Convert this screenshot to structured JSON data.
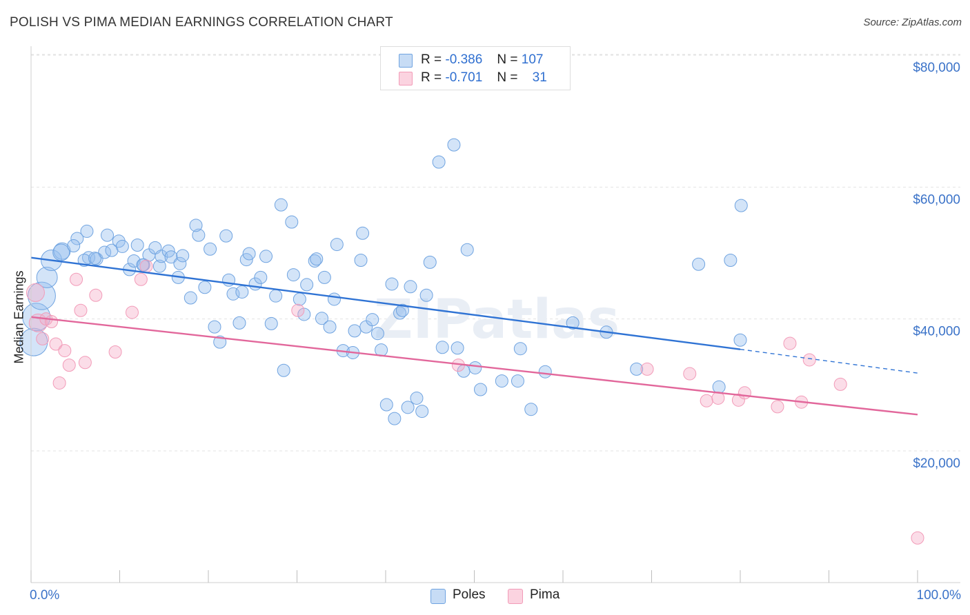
{
  "header": {
    "title": "POLISH VS PIMA MEDIAN EARNINGS CORRELATION CHART",
    "source": "Source: ZipAtlas.com"
  },
  "watermark": "ZIPatlas",
  "legend_top": [
    {
      "r_label": "R =",
      "r_value": "-0.386",
      "n_label": "N =",
      "n_value": "107"
    },
    {
      "r_label": "R =",
      "r_value": "-0.701",
      "n_label": "N =",
      "n_value": "31"
    }
  ],
  "chart_data": {
    "type": "scatter",
    "title": "POLISH VS PIMA MEDIAN EARNINGS CORRELATION CHART",
    "xlabel": "",
    "ylabel": "Median Earnings",
    "xlim": [
      0,
      100
    ],
    "ylim": [
      0,
      85000
    ],
    "x_tick_labels": [
      "0.0%",
      "100.0%"
    ],
    "y_ticks": [
      20000,
      40000,
      60000,
      80000
    ],
    "y_tick_labels": [
      "$20,000",
      "$40,000",
      "$60,000",
      "$80,000"
    ],
    "grid": true,
    "legend_placement": "bottom-center",
    "colors": {
      "Poles": "#6fa3e0",
      "Pima": "#f29bb8",
      "poles_line": "#2f73d4",
      "pima_line": "#e2679b",
      "tick_label": "#3a72c8"
    },
    "series": [
      {
        "name": "Poles",
        "r": -0.386,
        "n": 107,
        "trend": {
          "x0": 0,
          "y0": 49300,
          "x1": 80,
          "y1": 35400,
          "dashed_to_x": 100,
          "dashed_to_y": 31800
        },
        "points": [
          [
            0.3,
            36500
          ],
          [
            0.6,
            40300
          ],
          [
            1.2,
            43500
          ],
          [
            1.8,
            46300
          ],
          [
            2.3,
            48900
          ],
          [
            3.5,
            50300
          ],
          [
            3.4,
            50100
          ],
          [
            5.2,
            52200
          ],
          [
            4.8,
            51100
          ],
          [
            6.3,
            53300
          ],
          [
            6.5,
            49300
          ],
          [
            6.0,
            48900
          ],
          [
            7.4,
            49100
          ],
          [
            8.3,
            50100
          ],
          [
            8.6,
            52700
          ],
          [
            9.1,
            50400
          ],
          [
            9.9,
            51800
          ],
          [
            10.3,
            51000
          ],
          [
            11.1,
            47500
          ],
          [
            11.6,
            48800
          ],
          [
            12.0,
            51200
          ],
          [
            12.7,
            48200
          ],
          [
            13.3,
            49700
          ],
          [
            14.0,
            50800
          ],
          [
            14.5,
            48000
          ],
          [
            14.7,
            49500
          ],
          [
            15.5,
            50300
          ],
          [
            15.8,
            49400
          ],
          [
            16.8,
            48400
          ],
          [
            17.1,
            49600
          ],
          [
            16.6,
            46300
          ],
          [
            18.0,
            43200
          ],
          [
            18.9,
            52700
          ],
          [
            18.6,
            54200
          ],
          [
            19.6,
            44800
          ],
          [
            20.2,
            50600
          ],
          [
            20.7,
            38800
          ],
          [
            21.3,
            36500
          ],
          [
            22.0,
            52600
          ],
          [
            22.3,
            45900
          ],
          [
            22.8,
            43800
          ],
          [
            23.5,
            39400
          ],
          [
            23.8,
            44100
          ],
          [
            24.3,
            49000
          ],
          [
            24.6,
            49900
          ],
          [
            25.3,
            45300
          ],
          [
            25.9,
            46300
          ],
          [
            26.5,
            49500
          ],
          [
            27.1,
            39300
          ],
          [
            27.6,
            43500
          ],
          [
            28.2,
            57300
          ],
          [
            28.5,
            32200
          ],
          [
            29.4,
            54700
          ],
          [
            29.6,
            46700
          ],
          [
            30.3,
            43000
          ],
          [
            30.8,
            40700
          ],
          [
            31.1,
            45200
          ],
          [
            32.0,
            48800
          ],
          [
            32.2,
            49100
          ],
          [
            32.8,
            40100
          ],
          [
            33.1,
            46300
          ],
          [
            33.7,
            38800
          ],
          [
            34.2,
            43000
          ],
          [
            34.5,
            51300
          ],
          [
            35.2,
            35200
          ],
          [
            36.3,
            34900
          ],
          [
            36.5,
            38200
          ],
          [
            37.2,
            48900
          ],
          [
            37.4,
            53000
          ],
          [
            37.8,
            38800
          ],
          [
            38.5,
            39900
          ],
          [
            39.1,
            37800
          ],
          [
            39.5,
            35300
          ],
          [
            40.1,
            27000
          ],
          [
            40.7,
            45300
          ],
          [
            41.0,
            24900
          ],
          [
            41.6,
            40900
          ],
          [
            41.9,
            41300
          ],
          [
            42.5,
            26600
          ],
          [
            42.8,
            44900
          ],
          [
            43.5,
            28000
          ],
          [
            44.1,
            26000
          ],
          [
            44.6,
            43600
          ],
          [
            45.0,
            48600
          ],
          [
            46.0,
            63800
          ],
          [
            46.4,
            35700
          ],
          [
            47.7,
            66400
          ],
          [
            48.1,
            35600
          ],
          [
            48.8,
            32100
          ],
          [
            49.2,
            50500
          ],
          [
            50.1,
            32600
          ],
          [
            50.7,
            29300
          ],
          [
            53.1,
            30600
          ],
          [
            54.9,
            30600
          ],
          [
            55.2,
            35500
          ],
          [
            56.4,
            26300
          ],
          [
            58.0,
            32000
          ],
          [
            61.1,
            39400
          ],
          [
            75.3,
            48300
          ],
          [
            78.9,
            48900
          ],
          [
            80.1,
            57200
          ],
          [
            80.0,
            36800
          ],
          [
            77.6,
            29700
          ],
          [
            68.3,
            32400
          ],
          [
            64.9,
            38000
          ],
          [
            12.6,
            48200
          ],
          [
            7.2,
            49200
          ]
        ]
      },
      {
        "name": "Pima",
        "r": -0.701,
        "n": 31,
        "trend": {
          "x0": 0,
          "y0": 40300,
          "x1": 100,
          "y1": 25500
        },
        "points": [
          [
            0.5,
            44000
          ],
          [
            0.8,
            39400
          ],
          [
            1.3,
            37000
          ],
          [
            1.7,
            40000
          ],
          [
            2.3,
            39600
          ],
          [
            2.8,
            36200
          ],
          [
            3.2,
            30300
          ],
          [
            3.8,
            35200
          ],
          [
            4.3,
            33000
          ],
          [
            5.1,
            46000
          ],
          [
            5.6,
            41300
          ],
          [
            6.1,
            33400
          ],
          [
            7.3,
            43600
          ],
          [
            9.5,
            35000
          ],
          [
            11.4,
            41000
          ],
          [
            12.4,
            46000
          ],
          [
            13.0,
            48000
          ],
          [
            30.1,
            41300
          ],
          [
            48.2,
            33000
          ],
          [
            69.5,
            32400
          ],
          [
            74.3,
            31700
          ],
          [
            76.2,
            27600
          ],
          [
            77.5,
            28000
          ],
          [
            79.8,
            27700
          ],
          [
            80.5,
            28800
          ],
          [
            84.2,
            26700
          ],
          [
            85.6,
            36300
          ],
          [
            86.9,
            27400
          ],
          [
            87.8,
            33800
          ],
          [
            91.3,
            30100
          ],
          [
            100.0,
            6800
          ]
        ]
      }
    ]
  },
  "bottom_legend": [
    {
      "label": "Poles"
    },
    {
      "label": "Pima"
    }
  ]
}
